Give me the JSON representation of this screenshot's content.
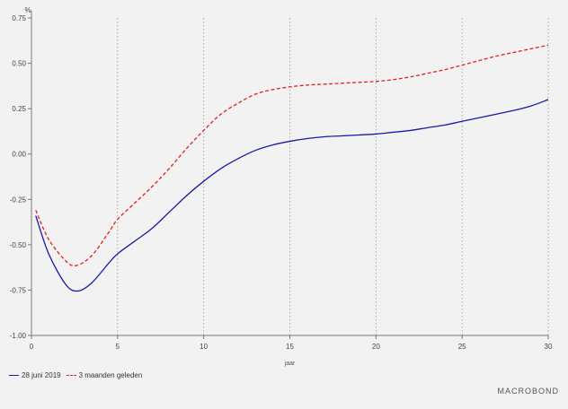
{
  "chart_data": {
    "type": "line",
    "ylabel": "%",
    "xlabel": "jaar",
    "xlim": [
      0,
      30
    ],
    "ylim": [
      -1.0,
      0.75
    ],
    "xticks": [
      0,
      5,
      10,
      15,
      20,
      25,
      30
    ],
    "xtick_labels": [
      "0",
      "5",
      "10",
      "15",
      "20",
      "25",
      "30"
    ],
    "yticks": [
      -1.0,
      -0.75,
      -0.5,
      -0.25,
      0.0,
      0.25,
      0.5,
      0.75
    ],
    "ytick_labels": [
      "-1.00",
      "-0.75",
      "-0.50",
      "-0.25",
      "0.00",
      "0.25",
      "0.50",
      "0.75"
    ],
    "vertical_gridlines": [
      5,
      10,
      15,
      20,
      25,
      30
    ],
    "legend_position": "bottom-left",
    "series": [
      {
        "name": "28 juni 2019",
        "color": "#1a1aa6",
        "style": "solid",
        "x": [
          0.25,
          1,
          2,
          2.7,
          3.5,
          4.5,
          5,
          6,
          7,
          8,
          9,
          10,
          11,
          12,
          13,
          14,
          15,
          16,
          17,
          18,
          19,
          20,
          21,
          22,
          23,
          24,
          25,
          26,
          27,
          28,
          29,
          30
        ],
        "y": [
          -0.34,
          -0.55,
          -0.72,
          -0.755,
          -0.71,
          -0.6,
          -0.55,
          -0.48,
          -0.41,
          -0.32,
          -0.23,
          -0.15,
          -0.08,
          -0.025,
          0.02,
          0.05,
          0.07,
          0.085,
          0.095,
          0.1,
          0.105,
          0.11,
          0.12,
          0.13,
          0.145,
          0.16,
          0.18,
          0.2,
          0.22,
          0.24,
          0.265,
          0.3
        ]
      },
      {
        "name": "3 maanden geleden",
        "color": "#e0201f",
        "style": "dashed",
        "x": [
          0.25,
          1,
          2,
          2.6,
          3.5,
          4.5,
          5,
          6,
          7,
          8,
          9,
          10,
          11,
          12,
          13,
          14,
          15,
          16,
          17,
          18,
          19,
          20,
          21,
          22,
          23,
          24,
          25,
          26,
          27,
          28,
          29,
          30
        ],
        "y": [
          -0.31,
          -0.47,
          -0.59,
          -0.615,
          -0.56,
          -0.43,
          -0.36,
          -0.27,
          -0.18,
          -0.08,
          0.03,
          0.13,
          0.22,
          0.28,
          0.33,
          0.355,
          0.37,
          0.38,
          0.385,
          0.39,
          0.395,
          0.4,
          0.41,
          0.425,
          0.445,
          0.465,
          0.49,
          0.515,
          0.54,
          0.56,
          0.58,
          0.6
        ]
      }
    ]
  },
  "legend": {
    "items": [
      {
        "label": "28 juni 2019",
        "color": "#1a1aa6",
        "style": "solid"
      },
      {
        "label": "3 maanden geleden",
        "color": "#e0201f",
        "style": "dashed"
      }
    ]
  },
  "brand": {
    "text": "MACROBOND"
  }
}
